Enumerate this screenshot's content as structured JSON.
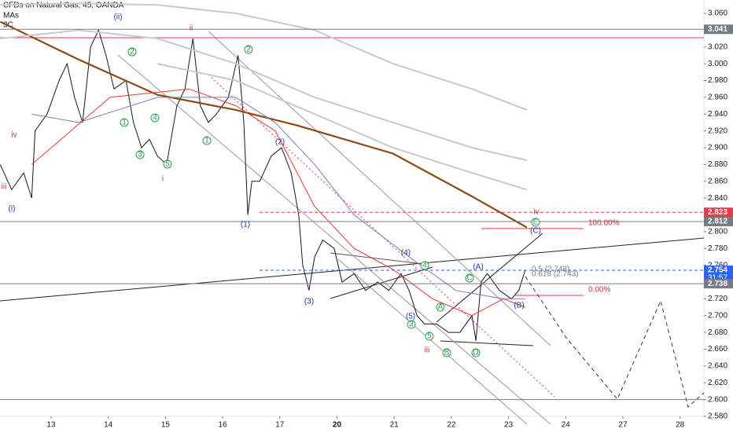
{
  "header": {
    "title": "CFDs on Natural Gas, 45, OANDA",
    "indicator_1": "MAs",
    "indicator_2": "3C",
    "countdown": "31:57"
  },
  "chart_data": {
    "type": "line",
    "xlim": [
      -0.894,
      11.417
    ],
    "ylim": [
      2.58,
      3.0759
    ],
    "xticks": [
      {
        "value": 0,
        "label": "13"
      },
      {
        "value": 1,
        "label": "14"
      },
      {
        "value": 2,
        "label": "15"
      },
      {
        "value": 3,
        "label": "16"
      },
      {
        "value": 4,
        "label": "17"
      },
      {
        "value": 5,
        "label": "20"
      },
      {
        "value": 6,
        "label": "21"
      },
      {
        "value": 7,
        "label": "22"
      },
      {
        "value": 8,
        "label": "23"
      },
      {
        "value": 9,
        "label": "24"
      },
      {
        "value": 10,
        "label": "27"
      },
      {
        "value": 11,
        "label": "28"
      }
    ],
    "yticks": [
      {
        "value": 3.06,
        "label": "3.060"
      },
      {
        "value": 3.02,
        "label": "3.020"
      },
      {
        "value": 3.0,
        "label": "3.000"
      },
      {
        "value": 2.98,
        "label": "2.980"
      },
      {
        "value": 2.96,
        "label": "2.960"
      },
      {
        "value": 2.94,
        "label": "2.940"
      },
      {
        "value": 2.92,
        "label": "2.920"
      },
      {
        "value": 2.9,
        "label": "2.900"
      },
      {
        "value": 2.88,
        "label": "2.880"
      },
      {
        "value": 2.86,
        "label": "2.860"
      },
      {
        "value": 2.84,
        "label": "2.840"
      },
      {
        "value": 2.8,
        "label": "2.800"
      },
      {
        "value": 2.78,
        "label": "2.780"
      },
      {
        "value": 2.76,
        "label": "2.760"
      },
      {
        "value": 2.72,
        "label": "2.720"
      },
      {
        "value": 2.7,
        "label": "2.700"
      },
      {
        "value": 2.68,
        "label": "2.680"
      },
      {
        "value": 2.66,
        "label": "2.660"
      },
      {
        "value": 2.64,
        "label": "2.640"
      },
      {
        "value": 2.62,
        "label": "2.620"
      },
      {
        "value": 2.6,
        "label": "2.600"
      },
      {
        "value": 2.58,
        "label": "2.580"
      }
    ],
    "series": [
      {
        "color": "#131722",
        "width": 1,
        "x": [
          -0.89,
          -0.69,
          -0.48,
          -0.34,
          -0.28,
          -0.07,
          0.14,
          0.28,
          0.41,
          0.55,
          0.69,
          0.83,
          0.96,
          1.1,
          1.31,
          1.44,
          1.58,
          1.72,
          1.86,
          2.02,
          2.2,
          2.34,
          2.48,
          2.61,
          2.75,
          2.89,
          3.1,
          3.27,
          3.37,
          3.44,
          3.51,
          3.65,
          3.85,
          4.03,
          4.2,
          4.33,
          4.4,
          4.51,
          4.61,
          4.75,
          4.95,
          5.09,
          5.3,
          5.5,
          5.71,
          5.91,
          6.12,
          6.26,
          6.4,
          6.53,
          6.74,
          6.95,
          7.15,
          7.36,
          7.43,
          7.52,
          7.63,
          7.84,
          8.05,
          8.18,
          8.29
        ],
        "values": [
          2.88,
          2.85,
          2.87,
          2.84,
          2.92,
          2.94,
          2.98,
          3.0,
          2.96,
          2.93,
          3.02,
          3.04,
          3.01,
          2.97,
          2.98,
          2.93,
          2.9,
          2.91,
          2.89,
          2.88,
          2.95,
          2.97,
          3.03,
          2.95,
          2.93,
          2.94,
          2.96,
          3.01,
          2.93,
          2.82,
          2.86,
          2.86,
          2.89,
          2.9,
          2.87,
          2.82,
          2.76,
          2.73,
          2.77,
          2.79,
          2.78,
          2.74,
          2.75,
          2.73,
          2.74,
          2.73,
          2.75,
          2.73,
          2.7,
          2.69,
          2.69,
          2.68,
          2.68,
          2.7,
          2.67,
          2.74,
          2.75,
          2.73,
          2.72,
          2.73,
          2.754
        ]
      },
      {
        "color": "#8b4a13",
        "width": 2.2,
        "x": [
          -0.89,
          0.48,
          1.86,
          3.23,
          4.33,
          5.98,
          7.36,
          8.32
        ],
        "values": [
          3.05,
          3.005,
          2.963,
          2.945,
          2.926,
          2.893,
          2.842,
          2.805
        ]
      },
      {
        "color": "#e53935",
        "width": 1,
        "x": [
          -0.34,
          1.03,
          2.41,
          3.23,
          3.92,
          4.61,
          5.3,
          5.98,
          6.67,
          7.36,
          7.91,
          8.29
        ],
        "values": [
          2.88,
          2.96,
          2.97,
          2.95,
          2.92,
          2.83,
          2.78,
          2.755,
          2.72,
          2.7,
          2.72,
          2.71
        ]
      },
      {
        "color": "#7e7bb8",
        "width": 1,
        "x": [
          -0.34,
          0.48,
          1.86,
          3.23,
          3.92,
          4.61,
          5.3,
          6.26,
          7.08,
          7.91,
          8.29
        ],
        "values": [
          2.94,
          2.93,
          2.96,
          2.96,
          2.93,
          2.88,
          2.82,
          2.77,
          2.73,
          2.72,
          2.72
        ]
      },
      {
        "color": "#c9c9c9",
        "width": 2,
        "x": [
          -0.89,
          0.48,
          1.86,
          3.23,
          4.61,
          5.98,
          7.36,
          8.32
        ],
        "values": [
          3.07,
          3.072,
          3.07,
          3.06,
          3.04,
          3.0,
          2.97,
          2.945
        ]
      },
      {
        "color": "#c9c9c9",
        "width": 2,
        "x": [
          -0.89,
          0.48,
          1.86,
          3.23,
          4.61,
          5.98,
          7.36,
          8.32
        ],
        "values": [
          3.03,
          3.04,
          3.03,
          3.0,
          2.96,
          2.93,
          2.9,
          2.885
        ]
      },
      {
        "color": "#c9c9c9",
        "width": 2,
        "x": [
          1.86,
          3.23,
          4.61,
          5.98,
          7.36,
          8.32
        ],
        "values": [
          3.0,
          2.98,
          2.94,
          2.9,
          2.87,
          2.85
        ]
      }
    ],
    "price_labels": [
      {
        "value": 3.041,
        "color": "#787b86"
      },
      {
        "value": 2.823,
        "color": "#f23645",
        "dash": true
      },
      {
        "value": 2.812,
        "color": "#787b86"
      },
      {
        "value": 2.754,
        "color": "#2962ff",
        "dash": true
      },
      {
        "value": 2.738,
        "color": "#787b86"
      }
    ],
    "lines": [
      {
        "value": 3.031,
        "color": "#f23645"
      },
      {
        "value": 2.6,
        "color": "#787b86"
      }
    ],
    "annotations": [
      "(ii)",
      "iv",
      "iii",
      "(i)",
      "ii",
      "i",
      "2",
      "1",
      "4",
      "3",
      "5",
      "1",
      "2",
      "(2)",
      "(1)",
      "(4)",
      "(3)",
      "(5)",
      "4",
      "3",
      "A",
      "5",
      "B",
      "C",
      "D",
      "E",
      "iii",
      "(A)",
      "(B)",
      "(C)",
      "iv",
      "0.5 (2.748)",
      "0.618 (2.743)",
      "100.00%",
      "0.00%"
    ]
  }
}
